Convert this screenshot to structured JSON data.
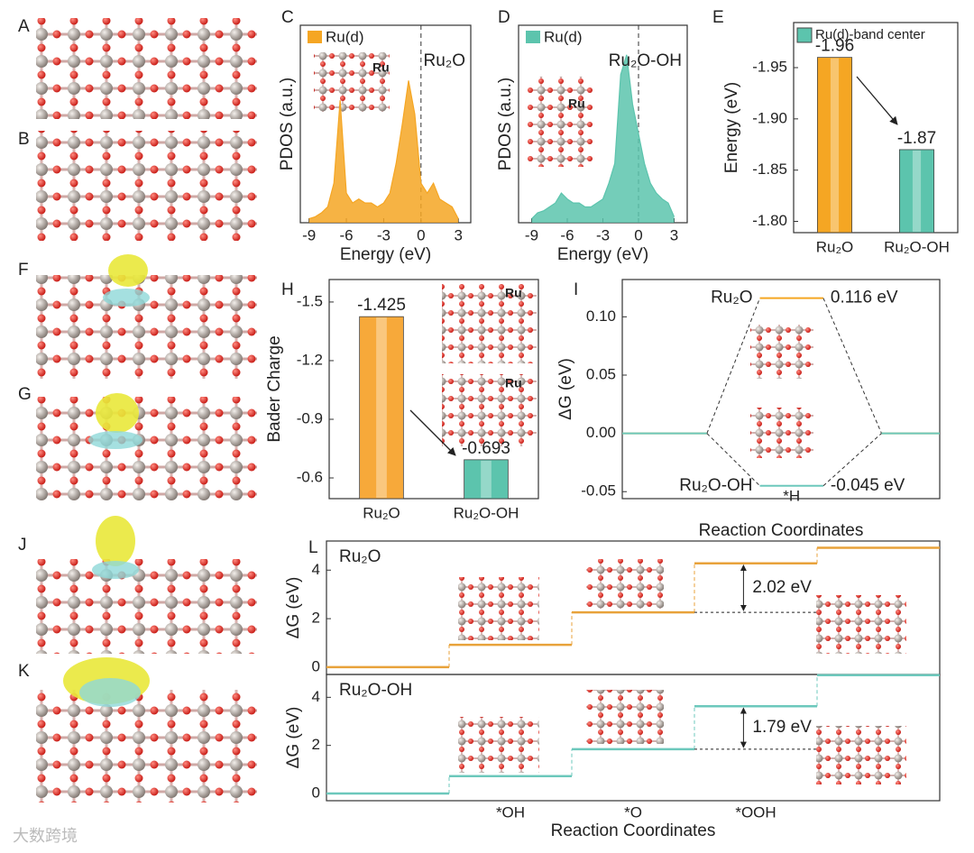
{
  "panel_labels": [
    "A",
    "B",
    "C",
    "D",
    "E",
    "F",
    "G",
    "H",
    "I",
    "J",
    "K",
    "L"
  ],
  "watermark": "大数跨境",
  "chart_data": [
    {
      "type": "area",
      "x": [
        -9,
        -8.5,
        -8,
        -7.5,
        -7,
        -6.5,
        -6,
        -5.5,
        -5,
        -4.5,
        -4,
        -3.5,
        -3,
        -2.5,
        -2,
        -1.5,
        -1,
        -0.5,
        0,
        0.5,
        1,
        1.5,
        2,
        2.5,
        3
      ],
      "series": [
        {
          "name": "Ru(d)",
          "color": "#f5a623",
          "values": [
            0.02,
            0.03,
            0.05,
            0.08,
            0.2,
            0.62,
            0.15,
            0.1,
            0.12,
            0.1,
            0.1,
            0.08,
            0.1,
            0.15,
            0.3,
            0.5,
            0.72,
            0.55,
            0.2,
            0.15,
            0.2,
            0.12,
            0.1,
            0.08,
            0.02
          ]
        }
      ],
      "xlim": [
        -9.7,
        4.0
      ],
      "ylim": [
        0,
        1
      ],
      "xticks": [
        -9,
        -6,
        -3,
        0,
        3
      ],
      "xlabel": "Energy (eV)",
      "ylabel": "PDOS (a.u.)",
      "vline": 0,
      "label": "Ru₂O",
      "inset_label": "Ru"
    },
    {
      "type": "area",
      "x": [
        -9,
        -8.5,
        -8,
        -7.5,
        -7,
        -6.5,
        -6,
        -5.5,
        -5,
        -4.5,
        -4,
        -3.5,
        -3,
        -2.5,
        -2,
        -1.5,
        -1,
        -0.5,
        0,
        0.5,
        1,
        1.5,
        2,
        2.5,
        3
      ],
      "series": [
        {
          "name": "Ru(d)",
          "color": "#5cc4ad",
          "values": [
            0.02,
            0.05,
            0.06,
            0.08,
            0.1,
            0.15,
            0.12,
            0.1,
            0.1,
            0.08,
            0.08,
            0.1,
            0.12,
            0.2,
            0.3,
            0.75,
            0.85,
            0.6,
            0.45,
            0.3,
            0.2,
            0.15,
            0.12,
            0.1,
            0.03
          ]
        }
      ],
      "xlim": [
        -10.1,
        4.1
      ],
      "ylim": [
        0,
        1
      ],
      "xticks": [
        -9,
        -6,
        -3,
        0,
        3
      ],
      "xlabel": "Energy (eV)",
      "ylabel": "PDOS (a.u.)",
      "vline": 0,
      "label": "Ru₂O-OH",
      "inset_label": "Ru"
    },
    {
      "type": "bar",
      "categories": [
        "Ru₂O",
        "Ru₂O-OH"
      ],
      "values": [
        -1.96,
        -1.87
      ],
      "colors": [
        "#f5a623",
        "#5cc4ad"
      ],
      "ylim": [
        -1.789,
        -1.994
      ],
      "yticks": [
        {
          "value": -1.8,
          "label": "-1.80"
        },
        -1.85,
        {
          "value": -1.9,
          "label": "-1.90"
        },
        -1.95
      ],
      "ylabel": "Energy (eV)",
      "legend": "Ru(d)-band center"
    },
    {
      "type": "bar",
      "categories": [
        "Ru₂O",
        "Ru₂O-OH"
      ],
      "values": [
        -1.425,
        -0.693
      ],
      "colors": [
        "#f7a93a",
        "#5cc4ad"
      ],
      "ylim": [
        -0.494,
        -1.615
      ],
      "yticks": [
        -0.6,
        -0.9,
        -1.2,
        -1.5
      ],
      "ylabel": "Bader Charge",
      "inset_labels": [
        "Ru",
        "Ru"
      ]
    },
    {
      "type": "energy",
      "categories": [
        null,
        "*H",
        null
      ],
      "series": [
        {
          "name": "Ru₂O",
          "color": "#f5a623",
          "values": [
            0,
            0.116,
            0
          ],
          "value_labels": [
            null,
            "0.116 eV",
            null
          ]
        },
        {
          "name": "Ru₂O-OH",
          "color": "#6cc8bc",
          "values": [
            0,
            -0.045,
            0
          ],
          "value_labels": [
            null,
            "-0.045 eV",
            null
          ]
        }
      ],
      "ylim": [
        -0.056,
        0.132
      ],
      "yticks": [
        {
          "value": 0.1,
          "label": "0.10"
        },
        0.05,
        {
          "value": 0,
          "label": "0.00"
        },
        -0.05
      ],
      "xlabel": "Reaction Coordinates",
      "ylabel": "ΔG (eV)"
    },
    {
      "type": "step",
      "title": "Ru₂O",
      "values": [
        0,
        0.92,
        2.26,
        4.28,
        4.92
      ],
      "color": "#e8a23a",
      "ylim": [
        -0.3,
        5.2
      ],
      "yticks": [
        0,
        2,
        4
      ],
      "ylabel": "ΔG (eV)",
      "gap_label": "2.02 eV"
    },
    {
      "type": "step",
      "title": "Ru₂O-OH",
      "categories": [
        null,
        "*OH",
        "*O",
        "*OOH",
        null
      ],
      "values": [
        0,
        0.72,
        1.84,
        3.63,
        4.92
      ],
      "color": "#6cc8bc",
      "ylim": [
        -0.3,
        4.95
      ],
      "yticks": [
        0,
        2,
        4
      ],
      "ylabel": "ΔG (eV)",
      "xlabel": "Reaction Coordinates",
      "gap_label": "1.79 eV"
    }
  ]
}
